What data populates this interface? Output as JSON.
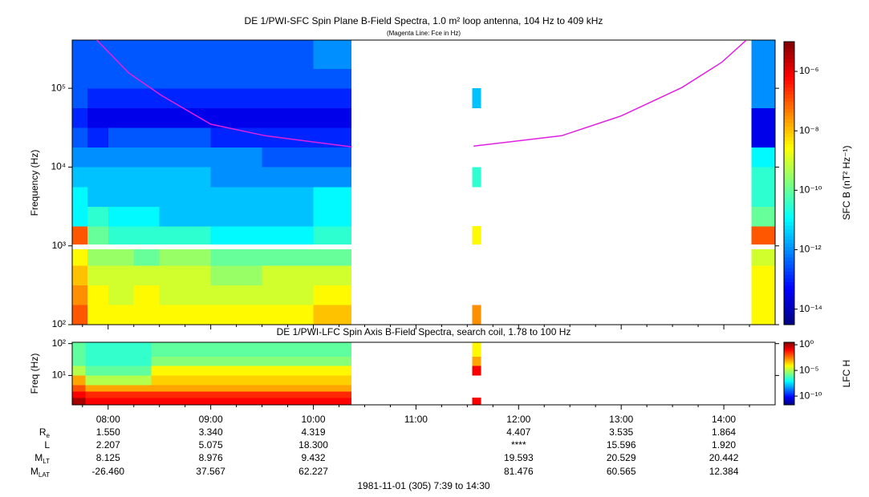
{
  "chart_data": [
    {
      "type": "spectrogram",
      "title": "DE 1/PWI-SFC  Spin Plane B-Field Spectra, 1.0 m² loop antenna, 104 Hz to 409 kHz",
      "subtitle": "(Magenta Line: Fce in Hz)",
      "ylabel": "Frequency (Hz)",
      "zlabel": "SFC B (nT² Hz⁻¹)",
      "log_y": true,
      "log_z": true,
      "ylim": [
        100,
        409000
      ],
      "yticks": [
        {
          "value": 100,
          "label": "10²"
        },
        {
          "value": 1000,
          "label": "10³"
        },
        {
          "value": 10000,
          "label": "10⁴"
        },
        {
          "value": 100000,
          "label": "10⁵"
        }
      ],
      "zlim": [
        3e-15,
        1e-05
      ],
      "zticks": [
        {
          "value": 1e-06,
          "label": "10⁻⁶"
        },
        {
          "value": 1e-08,
          "label": "10⁻⁸"
        },
        {
          "value": 1e-10,
          "label": "10⁻¹⁰"
        },
        {
          "value": 1e-12,
          "label": "10⁻¹²"
        },
        {
          "value": 1e-14,
          "label": "10⁻¹⁴"
        }
      ],
      "freq_edges": [
        100,
        178,
        316,
        562,
        900,
        1050,
        1780,
        3160,
        5620,
        10000,
        17800,
        31600,
        56200,
        100000,
        178000,
        409000
      ],
      "columns": [
        {
          "t": [
            7.65,
            7.8
          ],
          "values": [
            1e-07,
            3e-08,
            1e-08,
            3e-09,
            null,
            1e-07,
            1e-11,
            1e-11,
            3e-12,
            1e-12,
            3e-13,
            1e-13,
            3e-13,
            3e-13,
            3e-13
          ]
        },
        {
          "t": [
            7.8,
            8.0
          ],
          "values": [
            3e-09,
            3e-09,
            1e-09,
            3e-10,
            null,
            1e-10,
            3e-11,
            3e-12,
            3e-12,
            1e-12,
            1e-13,
            3e-14,
            1e-13,
            3e-13,
            3e-13
          ]
        },
        {
          "t": [
            8.0,
            8.25
          ],
          "values": [
            3e-09,
            1e-09,
            1e-09,
            3e-10,
            null,
            3e-11,
            1e-11,
            3e-12,
            3e-12,
            1e-12,
            3e-13,
            3e-14,
            1e-13,
            3e-13,
            3e-13
          ]
        },
        {
          "t": [
            8.25,
            8.5
          ],
          "values": [
            3e-09,
            3e-09,
            1e-09,
            1e-10,
            null,
            3e-11,
            1e-11,
            3e-12,
            3e-12,
            1e-12,
            3e-13,
            3e-14,
            1e-13,
            3e-13,
            3e-13
          ]
        },
        {
          "t": [
            8.5,
            9.0
          ],
          "values": [
            3e-09,
            1e-09,
            1e-09,
            3e-10,
            null,
            3e-11,
            3e-12,
            3e-12,
            3e-12,
            1e-12,
            3e-13,
            3e-14,
            1e-13,
            3e-13,
            3e-13
          ]
        },
        {
          "t": [
            9.0,
            9.5
          ],
          "values": [
            3e-09,
            1e-09,
            3e-10,
            1e-10,
            null,
            1e-11,
            3e-12,
            3e-12,
            1e-12,
            1e-12,
            1e-13,
            3e-14,
            1e-13,
            3e-13,
            3e-13
          ]
        },
        {
          "t": [
            9.5,
            10.0
          ],
          "values": [
            3e-09,
            1e-09,
            1e-09,
            1e-10,
            null,
            1e-11,
            3e-12,
            3e-12,
            1e-12,
            3e-13,
            1e-13,
            3e-14,
            1e-13,
            3e-13,
            3e-13
          ]
        },
        {
          "t": [
            10.0,
            10.37
          ],
          "values": [
            1e-08,
            3e-09,
            1e-09,
            1e-10,
            null,
            3e-11,
            1e-11,
            1e-11,
            1e-12,
            3e-13,
            1e-13,
            3e-14,
            1e-13,
            3e-13,
            1e-12
          ]
        },
        {
          "t": [
            11.55,
            11.63
          ],
          "values": [
            3e-08,
            null,
            null,
            null,
            null,
            3e-09,
            null,
            null,
            3e-11,
            null,
            null,
            null,
            3e-12,
            null,
            null
          ]
        },
        {
          "t": [
            14.27,
            14.5
          ],
          "values": [
            3e-09,
            3e-09,
            3e-09,
            1e-09,
            null,
            1e-07,
            1e-10,
            3e-11,
            3e-11,
            1e-11,
            3e-14,
            3e-14,
            1e-12,
            1e-12,
            1e-12
          ]
        }
      ],
      "line": {
        "color": "#e020e0",
        "x": [
          7.89,
          8.2,
          8.52,
          9.0,
          9.53,
          10.375,
          null,
          11.5625,
          12.42,
          13.0,
          13.59,
          13.98,
          14.22
        ],
        "values": [
          409000,
          157000,
          81000,
          35000,
          25000,
          18000,
          null,
          18500,
          25000,
          44600,
          102000,
          214000,
          409000
        ]
      }
    },
    {
      "type": "spectrogram",
      "title": "DE 1/PWI-LFC  Spin Axis B-Field Spectra, search coil, 1.78 to 100 Hz",
      "ylabel": "Freq (Hz)",
      "zlabel": "LFC H",
      "log_y": true,
      "log_z": true,
      "xlim": [
        7.65,
        14.5
      ],
      "xticks": [
        {
          "value": 8,
          "label": "08:00"
        },
        {
          "value": 9,
          "label": "09:00"
        },
        {
          "value": 10,
          "label": "10:00"
        },
        {
          "value": 11,
          "label": "11:00"
        },
        {
          "value": 12,
          "label": "12:00"
        },
        {
          "value": 13,
          "label": "13:00"
        },
        {
          "value": 14,
          "label": "14:00"
        }
      ],
      "xminorticks": [
        7.75,
        8.25,
        8.5,
        8.75,
        9.25,
        9.5,
        9.75,
        10.25,
        10.5,
        10.75,
        11.25,
        11.5,
        11.75,
        12.25,
        12.5,
        12.75,
        13.25,
        13.5,
        13.75,
        14.25
      ],
      "ylim": [
        1.2,
        110
      ],
      "yticks": [
        {
          "value": 10,
          "label": "10¹"
        },
        {
          "value": 100,
          "label": "10²"
        }
      ],
      "zlim": [
        2e-12,
        3
      ],
      "zticks": [
        {
          "value": 1,
          "label": "10⁰"
        },
        {
          "value": 1e-05,
          "label": "10⁻⁵"
        },
        {
          "value": 1e-10,
          "label": "10⁻¹⁰"
        }
      ],
      "freq_edges": [
        1.2,
        2,
        3.2,
        5,
        10,
        20,
        40,
        110
      ],
      "columns": [
        {
          "t": [
            7.65,
            7.78
          ],
          "values": [
            1,
            0.1,
            0.01,
            0.001,
            1e-05,
            1e-06,
            1e-06
          ]
        },
        {
          "t": [
            7.78,
            8.42
          ],
          "values": [
            0.1,
            0.03,
            0.001,
            1e-05,
            1e-06,
            3e-07,
            3e-07
          ]
        },
        {
          "t": [
            8.42,
            10.37
          ],
          "values": [
            0.1,
            0.03,
            0.001,
            0.0003,
            0.0001,
            3e-06,
            1e-06
          ]
        },
        {
          "t": [
            11.55,
            11.63
          ],
          "values": [
            0.1,
            null,
            null,
            null,
            0.1,
            0.001,
            0.0001
          ]
        }
      ]
    }
  ],
  "ephemeris": {
    "rows": [
      {
        "label": {
          "main": "R",
          "sub": "e"
        },
        "values": [
          "1.550",
          "3.340",
          "4.319",
          null,
          "4.407",
          "3.535",
          "1.864"
        ]
      },
      {
        "label": {
          "main": "L"
        },
        "values": [
          "2.207",
          "5.075",
          "18.300",
          null,
          "****",
          "15.596",
          "1.920"
        ]
      },
      {
        "label": {
          "main": "M",
          "sub": "LT"
        },
        "values": [
          "8.125",
          "8.976",
          "9.432",
          null,
          "19.593",
          "20.529",
          "20.442"
        ]
      },
      {
        "label": {
          "main": "M",
          "sub": "LAT"
        },
        "values": [
          "-26.460",
          "37.567",
          "62.227",
          null,
          "81.476",
          "60.565",
          "12.384"
        ]
      }
    ]
  },
  "footer": "1981-11-01 (305) 7:39 to 14:30"
}
